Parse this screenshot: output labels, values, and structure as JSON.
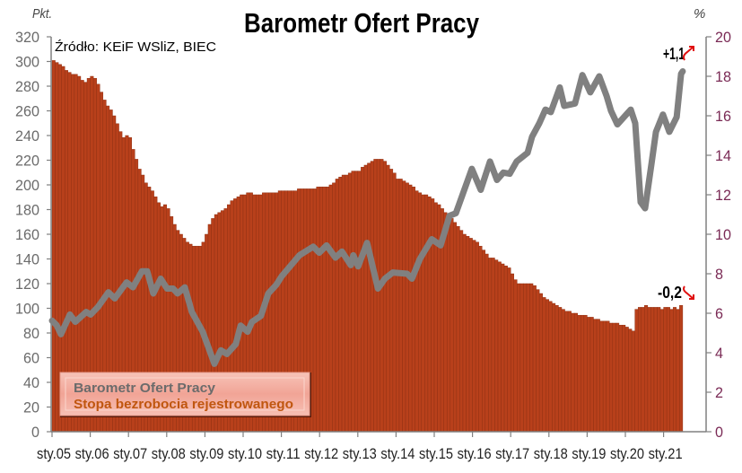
{
  "chart_data": {
    "type": "bar+line",
    "title": "Barometr Ofert Pracy",
    "source": "Źródło: KEiF WSliZ, BIEC",
    "left_axis": {
      "unit": "Pkt.",
      "ylim": [
        0,
        320
      ],
      "step": 20,
      "ticks": [
        "0",
        "20",
        "40",
        "60",
        "80",
        "100",
        "120",
        "140",
        "160",
        "180",
        "200",
        "220",
        "240",
        "260",
        "280",
        "300",
        "320"
      ]
    },
    "right_axis": {
      "unit": "%",
      "ylim": [
        0,
        20
      ],
      "step": 2,
      "ticks": [
        "0",
        "2",
        "4",
        "6",
        "8",
        "10",
        "12",
        "14",
        "16",
        "18",
        "20"
      ]
    },
    "x_start": "2005-01",
    "x_labels": [
      "sty.05",
      "sty.06",
      "sty.07",
      "sty.08",
      "sty.09",
      "sty.10",
      "sty.11",
      "sty.12",
      "sty.13",
      "sty.14",
      "sty.15",
      "sty.16",
      "sty.17",
      "sty.18",
      "sty.19",
      "sty.20",
      "sty.21"
    ],
    "grid": false,
    "legend": {
      "position": "bottom-left",
      "entries": [
        "Barometr Ofert Pracy",
        "Stopa bezrobocia rejestrowanego"
      ]
    },
    "series": [
      {
        "name": "Stopa bezrobocia rejestrowanego",
        "type": "bar",
        "axis": "right",
        "color": "#b8401b",
        "monthly_values": [
          18.8,
          18.7,
          18.6,
          18.5,
          18.3,
          18.2,
          18.1,
          18.1,
          18.0,
          17.8,
          17.7,
          17.9,
          18.0,
          17.9,
          17.6,
          17.2,
          16.8,
          16.5,
          16.3,
          16.0,
          15.6,
          15.2,
          14.9,
          15.0,
          14.9,
          14.3,
          13.8,
          13.3,
          13.0,
          12.6,
          12.4,
          12.2,
          11.9,
          11.6,
          11.4,
          11.5,
          11.3,
          10.9,
          10.5,
          10.2,
          10.0,
          9.8,
          9.6,
          9.5,
          9.4,
          9.4,
          9.4,
          9.6,
          10.0,
          10.5,
          10.8,
          11.0,
          11.1,
          11.2,
          11.3,
          11.5,
          11.7,
          11.8,
          11.9,
          12.0,
          12.0,
          12.1,
          12.1,
          12.0,
          12.0,
          12.0,
          12.1,
          12.1,
          12.1,
          12.1,
          12.1,
          12.2,
          12.2,
          12.2,
          12.2,
          12.2,
          12.2,
          12.3,
          12.3,
          12.3,
          12.3,
          12.3,
          12.3,
          12.4,
          12.4,
          12.4,
          12.4,
          12.5,
          12.6,
          12.8,
          12.9,
          13.0,
          13.0,
          13.1,
          13.2,
          13.2,
          13.2,
          13.4,
          13.5,
          13.6,
          13.7,
          13.8,
          13.8,
          13.8,
          13.7,
          13.5,
          13.3,
          13.1,
          12.8,
          12.8,
          12.7,
          12.6,
          12.5,
          12.4,
          12.2,
          12.1,
          12.0,
          12.0,
          11.9,
          11.8,
          11.6,
          11.5,
          11.3,
          11.1,
          11.0,
          10.8,
          10.6,
          10.4,
          10.2,
          10.0,
          9.9,
          9.8,
          9.7,
          9.6,
          9.4,
          9.2,
          9.0,
          8.8,
          8.8,
          8.7,
          8.6,
          8.5,
          8.4,
          8.3,
          8.0,
          7.7,
          7.5,
          7.5,
          7.5,
          7.5,
          7.5,
          7.4,
          7.2,
          7.0,
          6.8,
          6.7,
          6.6,
          6.5,
          6.4,
          6.3,
          6.2,
          6.1,
          6.1,
          6.0,
          6.0,
          5.9,
          5.9,
          5.9,
          5.8,
          5.8,
          5.7,
          5.7,
          5.6,
          5.6,
          5.6,
          5.5,
          5.5,
          5.5,
          5.4,
          5.4,
          5.3,
          5.2,
          5.1,
          6.2,
          6.3,
          6.3,
          6.4,
          6.3,
          6.3,
          6.3,
          6.3,
          6.2,
          6.3,
          6.3,
          6.2,
          6.3,
          6.2,
          6.4
        ]
      },
      {
        "name": "Barometr Ofert Pracy",
        "type": "line",
        "axis": "left",
        "color": "#808080",
        "points_month_value": [
          [
            0,
            90
          ],
          [
            1.4,
            86.5
          ],
          [
            2.8,
            79
          ],
          [
            5.6,
            95
          ],
          [
            7.3,
            89
          ],
          [
            10.7,
            97
          ],
          [
            12.1,
            95
          ],
          [
            14.4,
            101
          ],
          [
            17.7,
            113
          ],
          [
            19.7,
            108
          ],
          [
            23.4,
            121
          ],
          [
            25.4,
            117
          ],
          [
            28.2,
            130
          ],
          [
            29.9,
            130
          ],
          [
            31.8,
            112
          ],
          [
            34.1,
            124
          ],
          [
            36.1,
            116
          ],
          [
            38,
            116
          ],
          [
            39.4,
            112
          ],
          [
            41.7,
            117
          ],
          [
            43.9,
            97
          ],
          [
            47.3,
            81
          ],
          [
            51,
            55
          ],
          [
            53,
            66
          ],
          [
            54.9,
            63
          ],
          [
            57.7,
            71
          ],
          [
            59.2,
            86
          ],
          [
            61.4,
            81
          ],
          [
            62.8,
            89
          ],
          [
            65.6,
            94
          ],
          [
            67.9,
            112
          ],
          [
            70.4,
            119
          ],
          [
            72.1,
            126
          ],
          [
            77.7,
            143
          ],
          [
            82,
            150
          ],
          [
            83.9,
            145
          ],
          [
            86.2,
            151
          ],
          [
            89,
            141
          ],
          [
            91,
            146
          ],
          [
            93.8,
            135
          ],
          [
            94.6,
            143
          ],
          [
            96.1,
            134
          ],
          [
            98.9,
            153
          ],
          [
            102.3,
            116
          ],
          [
            104.5,
            124
          ],
          [
            107,
            129
          ],
          [
            111.5,
            128
          ],
          [
            113,
            124
          ],
          [
            115.5,
            140
          ],
          [
            119.2,
            156
          ],
          [
            122,
            151
          ],
          [
            124.8,
            175
          ],
          [
            126.8,
            177
          ],
          [
            131.8,
            213
          ],
          [
            134.6,
            196
          ],
          [
            137.5,
            219
          ],
          [
            139.7,
            204
          ],
          [
            141.7,
            210
          ],
          [
            143.7,
            209
          ],
          [
            145.9,
            219
          ],
          [
            149.3,
            226
          ],
          [
            150.7,
            239
          ],
          [
            153,
            250
          ],
          [
            154.9,
            261
          ],
          [
            156.6,
            259
          ],
          [
            159.4,
            279
          ],
          [
            160.8,
            264
          ],
          [
            164.2,
            266
          ],
          [
            166.5,
            289
          ],
          [
            169,
            275
          ],
          [
            171.8,
            288
          ],
          [
            174.1,
            272
          ],
          [
            175.5,
            260
          ],
          [
            177.5,
            249
          ],
          [
            181.7,
            261
          ],
          [
            183.1,
            250
          ],
          [
            184.8,
            186
          ],
          [
            186.2,
            181
          ],
          [
            188.2,
            217
          ],
          [
            189.6,
            243
          ],
          [
            191.8,
            257
          ],
          [
            193.8,
            243
          ],
          [
            196.1,
            255
          ],
          [
            197.5,
            290
          ],
          [
            198,
            292
          ]
        ]
      }
    ],
    "annotations": [
      {
        "text": "+1,1",
        "series": "Barometr Ofert Pracy",
        "direction": "up",
        "arrow_color": "#e01010"
      },
      {
        "text": "-0,2",
        "series": "Stopa bezrobocia rejestrowanego",
        "direction": "down",
        "arrow_color": "#e01010"
      }
    ],
    "colors": {
      "left_tick": "#6b6b6b",
      "right_tick": "#7a2a55",
      "legend_line_text": "#6b6b6b",
      "legend_bar_text": "#c0560f"
    }
  }
}
